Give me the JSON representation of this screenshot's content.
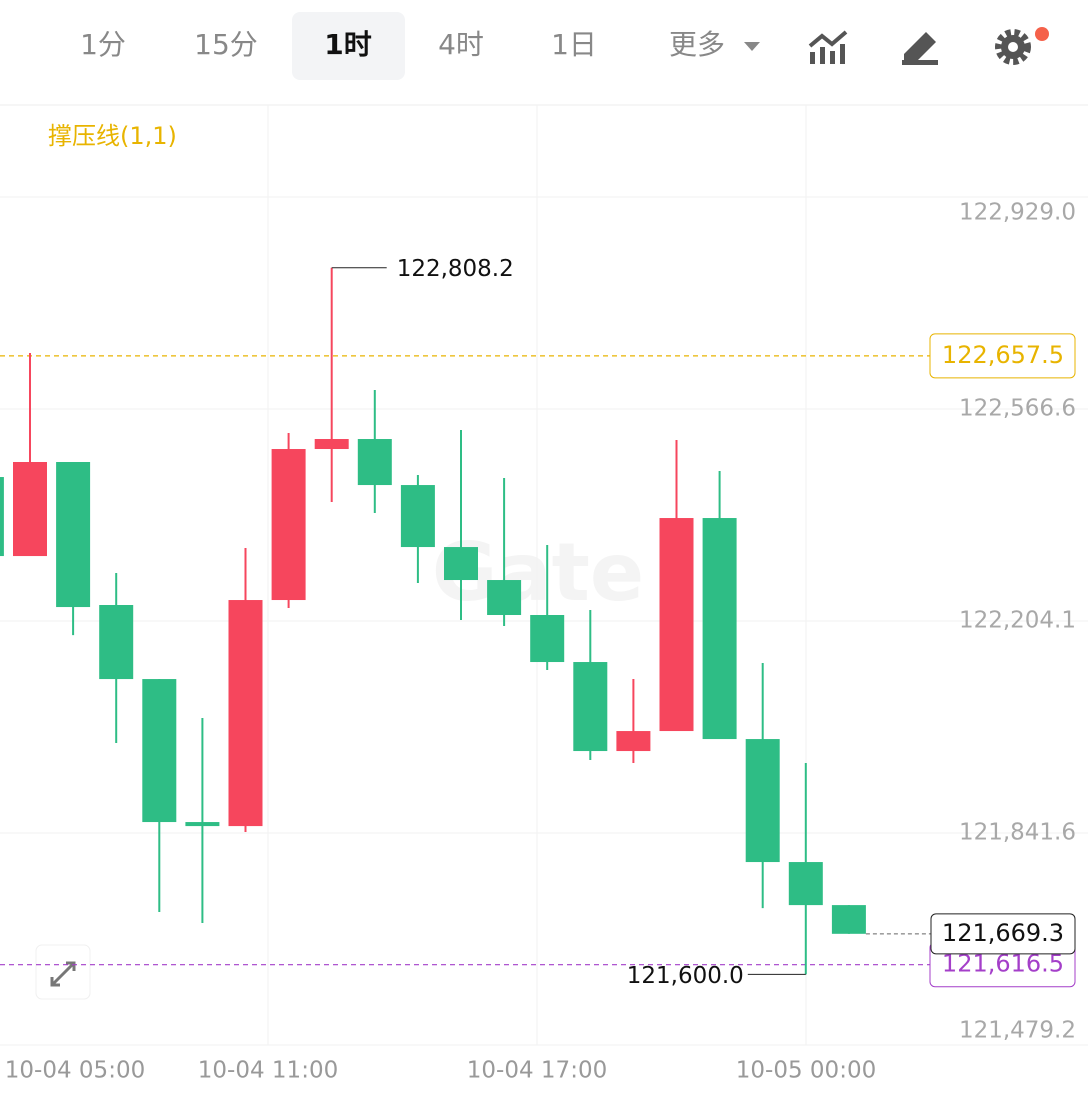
{
  "tabs": {
    "items": [
      "1分",
      "15分",
      "1时",
      "4时",
      "1日",
      "更多"
    ],
    "selected": 2
  },
  "chart_data": {
    "type": "candlestick",
    "indicator": "撑压线(1,1)",
    "watermark": "Gate",
    "up_color": "#f6465d",
    "down_color": "#2ebd85",
    "open": [
      122450.3,
      122315.2,
      122476.0,
      122231.5,
      122104.9,
      121860.4,
      121853.5,
      122240.0,
      122498.2,
      122515.3,
      122436.6,
      122330.6,
      122274.2,
      122214.4,
      122134.0,
      121981.8,
      122016.0,
      122380.2,
      122002.3,
      121792.0,
      121718.4
    ],
    "high": [
      122450.3,
      122662.4,
      122476.0,
      122286.2,
      122104.9,
      122038.2,
      122328.9,
      122525.6,
      122808.2,
      122599.1,
      122453.7,
      122530.7,
      122448.6,
      122334.0,
      122222.9,
      122104.9,
      122513.6,
      122460.6,
      122132.3,
      121961.3,
      121718.4
    ],
    "low": [
      122315.2,
      122315.2,
      122180.1,
      121995.5,
      121706.5,
      121687.7,
      121843.3,
      122226.3,
      122407.6,
      122388.8,
      122269.1,
      122205.8,
      122195.6,
      122120.3,
      121966.4,
      121961.3,
      122016.0,
      122002.3,
      121713.3,
      121600.0,
      121669.3
    ],
    "close": [
      122315.2,
      122476.0,
      122228.0,
      122104.9,
      121860.4,
      121853.5,
      122240.0,
      122498.2,
      122515.3,
      122436.6,
      122330.6,
      122274.2,
      122214.4,
      122134.0,
      121981.8,
      122016.0,
      122380.2,
      122002.3,
      121792.0,
      121718.4,
      121669.3
    ],
    "ylim": [
      121479.2,
      123086.4
    ],
    "yticks": [
      {
        "value": 122929.0,
        "label": "122,929.0"
      },
      {
        "value": 122566.6,
        "label": "122,566.6"
      },
      {
        "value": 122204.1,
        "label": "122,204.1"
      },
      {
        "value": 121841.6,
        "label": "121,841.6"
      },
      {
        "value": 121479.2,
        "label": "121,479.2"
      }
    ],
    "x_labels": [
      "10-04 05:00",
      "10-04 11:00",
      "10-04 17:00",
      "10-05 00:00"
    ],
    "high_marker": {
      "value": 122808.2,
      "label": "122,808.2"
    },
    "low_marker": {
      "value": 121600.0,
      "label": "121,600.0"
    },
    "resistance": {
      "value": 122657.5,
      "label": "122,657.5",
      "color": "#e8b400"
    },
    "support": {
      "value": 121616.5,
      "label": "121,616.5",
      "color": "#a43fc9"
    },
    "last_price": {
      "value": 121669.3,
      "label": "121,669.3"
    }
  }
}
